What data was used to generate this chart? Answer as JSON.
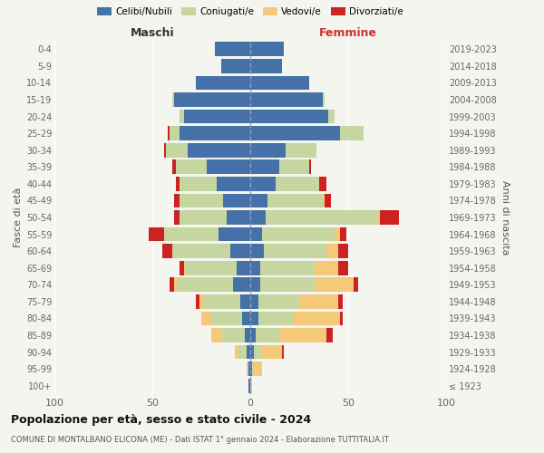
{
  "age_groups": [
    "100+",
    "95-99",
    "90-94",
    "85-89",
    "80-84",
    "75-79",
    "70-74",
    "65-69",
    "60-64",
    "55-59",
    "50-54",
    "45-49",
    "40-44",
    "35-39",
    "30-34",
    "25-29",
    "20-24",
    "15-19",
    "10-14",
    "5-9",
    "0-4"
  ],
  "birth_years": [
    "≤ 1923",
    "1924-1928",
    "1929-1933",
    "1934-1938",
    "1939-1943",
    "1944-1948",
    "1949-1953",
    "1954-1958",
    "1959-1963",
    "1964-1968",
    "1969-1973",
    "1974-1978",
    "1979-1983",
    "1984-1988",
    "1989-1993",
    "1994-1998",
    "1999-2003",
    "2004-2008",
    "2009-2013",
    "2014-2018",
    "2019-2023"
  ],
  "colors": {
    "celibi": "#4472a8",
    "coniugati": "#c5d6a0",
    "vedovi": "#f5c97a",
    "divorziati": "#cc2222"
  },
  "maschi": {
    "celibi": [
      1,
      1,
      2,
      3,
      4,
      5,
      9,
      7,
      10,
      16,
      12,
      14,
      17,
      22,
      32,
      36,
      34,
      39,
      28,
      15,
      18
    ],
    "coniugati": [
      0,
      1,
      4,
      12,
      16,
      19,
      28,
      26,
      30,
      28,
      24,
      22,
      19,
      16,
      11,
      5,
      2,
      1,
      0,
      0,
      0
    ],
    "vedovi": [
      0,
      0,
      2,
      5,
      5,
      2,
      2,
      1,
      0,
      0,
      0,
      0,
      0,
      0,
      0,
      0,
      0,
      0,
      0,
      0,
      0
    ],
    "divorziati": [
      0,
      0,
      0,
      0,
      0,
      2,
      2,
      2,
      5,
      8,
      3,
      3,
      2,
      2,
      1,
      1,
      0,
      0,
      0,
      0,
      0
    ]
  },
  "femmine": {
    "celibi": [
      0,
      1,
      2,
      3,
      4,
      4,
      5,
      5,
      7,
      6,
      8,
      9,
      13,
      15,
      18,
      46,
      40,
      37,
      30,
      16,
      17
    ],
    "coniugati": [
      0,
      1,
      4,
      12,
      18,
      21,
      28,
      28,
      32,
      37,
      57,
      28,
      22,
      15,
      16,
      12,
      3,
      1,
      0,
      0,
      0
    ],
    "vedovi": [
      1,
      4,
      10,
      24,
      24,
      20,
      20,
      12,
      6,
      3,
      1,
      1,
      0,
      0,
      0,
      0,
      0,
      0,
      0,
      0,
      0
    ],
    "divorziati": [
      0,
      0,
      1,
      3,
      1,
      2,
      2,
      5,
      5,
      3,
      10,
      3,
      4,
      1,
      0,
      0,
      0,
      0,
      0,
      0,
      0
    ]
  },
  "xlim": 100,
  "title": "Popolazione per età, sesso e stato civile - 2024",
  "subtitle": "COMUNE DI MONTALBANO ELICONA (ME) - Dati ISTAT 1° gennaio 2024 - Elaborazione TUTTITALIA.IT",
  "ylabel_left": "Fasce di età",
  "ylabel_right": "Anni di nascita",
  "xlabel_left": "Maschi",
  "xlabel_right": "Femmine",
  "legend_labels": [
    "Celibi/Nubili",
    "Coniugati/e",
    "Vedovi/e",
    "Divorziati/e"
  ],
  "bg_color": "#f5f5f0"
}
